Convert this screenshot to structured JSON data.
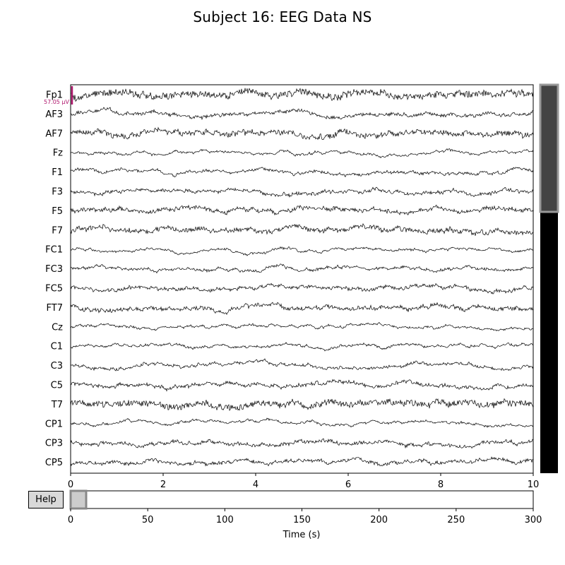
{
  "title": "Subject 16: EEG Data NS",
  "help_label": "Help",
  "colors": {
    "trace": "#000000",
    "scalebar": "#b0186e",
    "scroll_thumb": "#444444",
    "scroll_track": "#000000"
  },
  "chart_data": [
    {
      "type": "line",
      "title": "",
      "xlabel": "",
      "ylabel": "",
      "xlim": [
        0,
        10
      ],
      "x_ticks": [
        "0",
        "2",
        "4",
        "6",
        "8",
        "10"
      ],
      "channels": [
        "Fp1",
        "AF3",
        "AF7",
        "Fz",
        "F1",
        "F3",
        "F5",
        "F7",
        "FC1",
        "FC3",
        "FC5",
        "FT7",
        "Cz",
        "C1",
        "C3",
        "C5",
        "T7",
        "CP1",
        "CP3",
        "CP5"
      ],
      "scalebar_label": "57.05 µV",
      "grid": false
    },
    {
      "type": "line",
      "xlabel": "Time (s)",
      "xlim": [
        0,
        300
      ],
      "x_ticks": [
        "0",
        "50",
        "100",
        "150",
        "200",
        "250",
        "300"
      ],
      "view_window": [
        0,
        10
      ]
    }
  ]
}
